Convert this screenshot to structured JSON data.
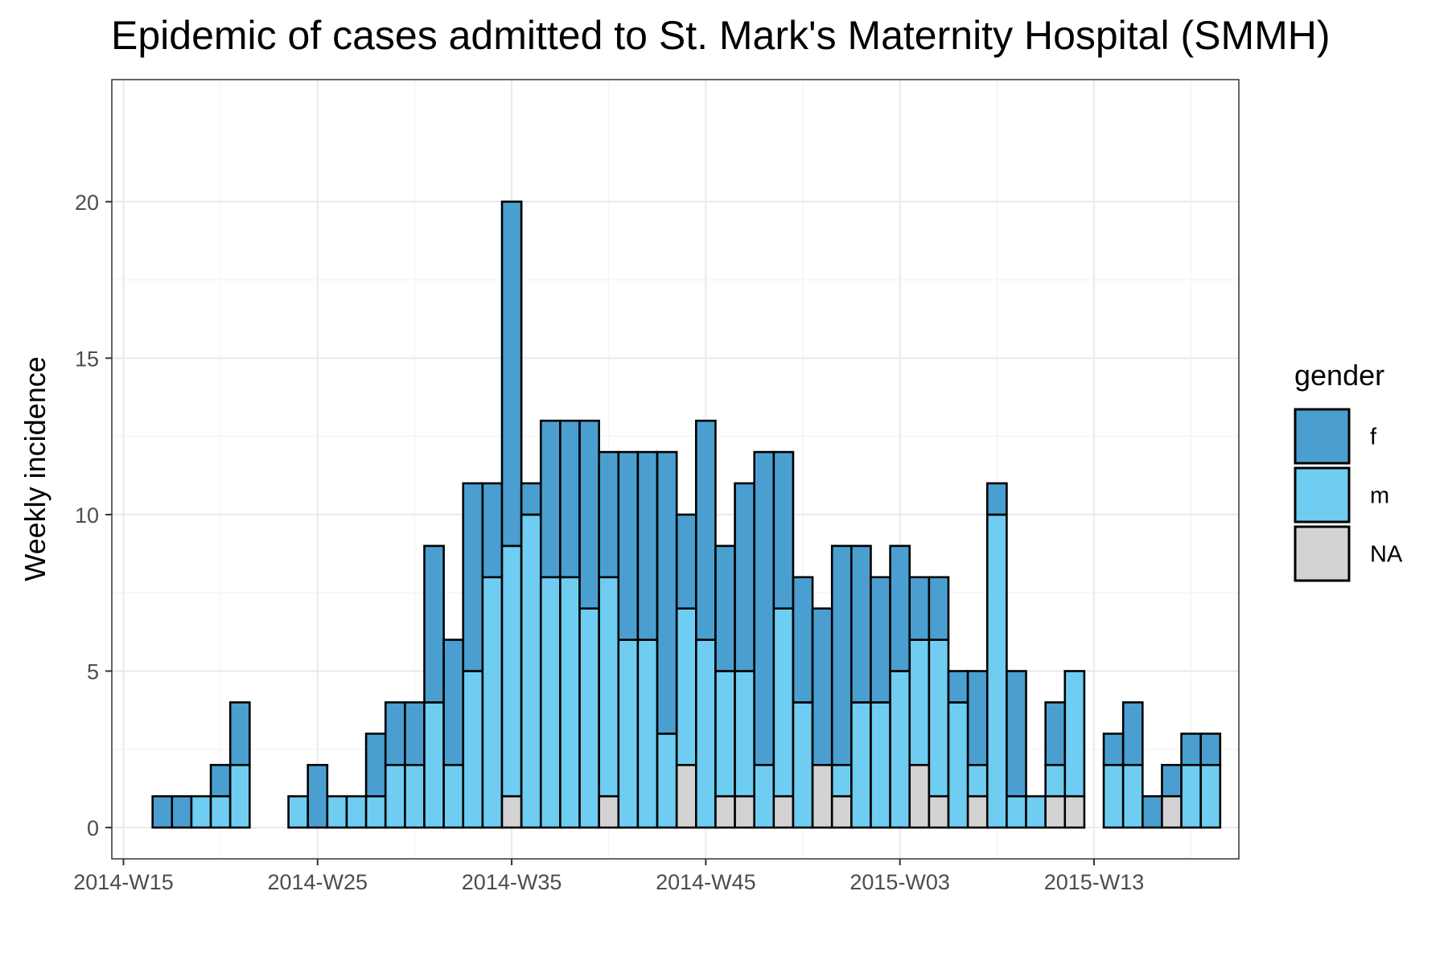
{
  "chart_data": {
    "type": "bar",
    "stacked": true,
    "title": "Epidemic of cases admitted to St. Mark's Maternity Hospital (SMMH)",
    "xlabel": "",
    "ylabel": "Weekly incidence",
    "ylim": [
      -1,
      23.9
    ],
    "y_ticks": [
      0,
      5,
      10,
      15,
      20
    ],
    "x_ticks": [
      {
        "label": "2014-W15",
        "week_index": 0
      },
      {
        "label": "2014-W25",
        "week_index": 10
      },
      {
        "label": "2014-W35",
        "week_index": 20
      },
      {
        "label": "2014-W45",
        "week_index": 30
      },
      {
        "label": "2015-W03",
        "week_index": 40
      },
      {
        "label": "2015-W13",
        "week_index": 50
      }
    ],
    "grid": true,
    "legend_position": "right",
    "legend_title": "gender",
    "categories": [
      "2014-W17",
      "2014-W18",
      "2014-W19",
      "2014-W20",
      "2014-W21",
      "2014-W22",
      "2014-W23",
      "2014-W24",
      "2014-W25",
      "2014-W26",
      "2014-W27",
      "2014-W28",
      "2014-W29",
      "2014-W30",
      "2014-W31",
      "2014-W32",
      "2014-W33",
      "2014-W34",
      "2014-W35",
      "2014-W36",
      "2014-W37",
      "2014-W38",
      "2014-W39",
      "2014-W40",
      "2014-W41",
      "2014-W42",
      "2014-W43",
      "2014-W44",
      "2014-W45",
      "2014-W46",
      "2014-W47",
      "2014-W48",
      "2014-W49",
      "2014-W50",
      "2014-W51",
      "2014-W52",
      "2015-W01",
      "2015-W02",
      "2015-W03",
      "2015-W04",
      "2015-W05",
      "2015-W06",
      "2015-W07",
      "2015-W08",
      "2015-W09",
      "2015-W10",
      "2015-W11",
      "2015-W12",
      "2015-W13",
      "2015-W14",
      "2015-W15",
      "2015-W16",
      "2015-W17",
      "2015-W18",
      "2015-W19"
    ],
    "series": [
      {
        "name": "NA",
        "color": "#d3d3d3",
        "values": [
          0,
          0,
          0,
          0,
          0,
          0,
          0,
          0,
          0,
          0,
          0,
          0,
          0,
          0,
          0,
          0,
          0,
          0,
          1,
          0,
          0,
          0,
          0,
          1,
          0,
          0,
          0,
          2,
          0,
          1,
          1,
          0,
          1,
          0,
          2,
          1,
          0,
          0,
          0,
          2,
          1,
          0,
          1,
          0,
          0,
          0,
          1,
          1,
          0,
          0,
          0,
          0,
          1,
          0,
          0
        ]
      },
      {
        "name": "m",
        "color": "#6fcdf1",
        "values": [
          0,
          0,
          1,
          1,
          2,
          0,
          0,
          1,
          0,
          1,
          1,
          1,
          2,
          2,
          4,
          2,
          5,
          8,
          8,
          10,
          8,
          8,
          7,
          7,
          6,
          6,
          3,
          5,
          6,
          4,
          4,
          2,
          6,
          4,
          0,
          1,
          4,
          4,
          5,
          4,
          5,
          4,
          1,
          10,
          1,
          1,
          1,
          4,
          0,
          2,
          2,
          0,
          0,
          2,
          2
        ]
      },
      {
        "name": "f",
        "color": "#4a9fd0",
        "values": [
          1,
          1,
          0,
          1,
          2,
          0,
          0,
          0,
          2,
          0,
          0,
          2,
          2,
          2,
          5,
          4,
          6,
          3,
          11,
          1,
          5,
          5,
          6,
          4,
          6,
          6,
          9,
          3,
          7,
          4,
          6,
          10,
          5,
          4,
          5,
          7,
          5,
          4,
          4,
          2,
          2,
          1,
          3,
          1,
          4,
          0,
          2,
          0,
          0,
          1,
          2,
          1,
          1,
          1,
          1
        ]
      }
    ]
  },
  "legend": {
    "title": "gender",
    "items": [
      {
        "label": "f",
        "color": "#4a9fd0"
      },
      {
        "label": "m",
        "color": "#6fcdf1"
      },
      {
        "label": "NA",
        "color": "#d3d3d3"
      }
    ]
  }
}
